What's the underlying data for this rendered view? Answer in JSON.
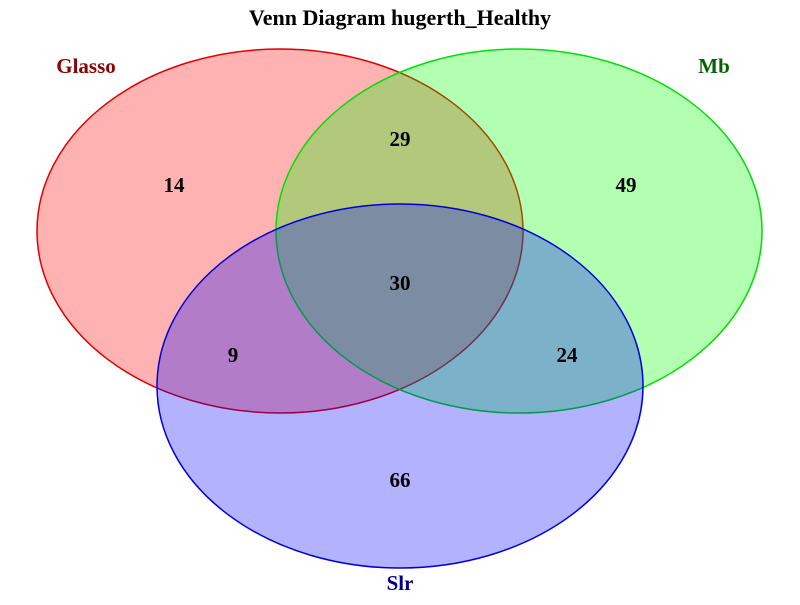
{
  "title": "Venn Diagram hugerth_Healthy",
  "sets": [
    {
      "key": "a",
      "name": "Glasso",
      "fill": "#ff0000",
      "fill_opacity": 0.3,
      "stroke": "#e00000",
      "label_color": "#8b0000"
    },
    {
      "key": "b",
      "name": "Mb",
      "fill": "#00ff00",
      "fill_opacity": 0.3,
      "stroke": "#00e000",
      "label_color": "#006400"
    },
    {
      "key": "c",
      "name": "Slr",
      "fill": "#0000ff",
      "fill_opacity": 0.3,
      "stroke": "#0000d8",
      "label_color": "#00008b"
    }
  ],
  "regions": {
    "a_only": "14",
    "b_only": "49",
    "c_only": "66",
    "ab_only": "29",
    "ac_only": "9",
    "bc_only": "24",
    "abc": "30"
  }
}
